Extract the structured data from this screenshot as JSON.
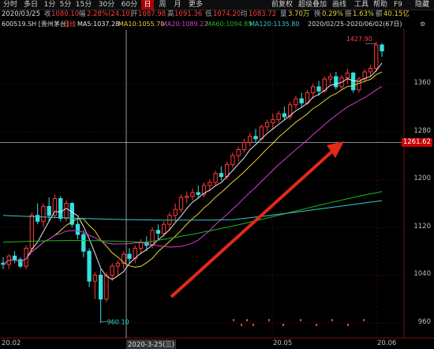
{
  "toolbar": {
    "periods": [
      "分时",
      "多日",
      "1分",
      "5分",
      "15分",
      "30分",
      "60分",
      "日",
      "周",
      "月",
      "更多"
    ],
    "active_period": "日",
    "right_tabs": [
      "前复权",
      "超级叠加",
      "画线",
      "工具",
      "帮助",
      "F9",
      "隐藏"
    ]
  },
  "info": {
    "date": "2020/03/25",
    "close_label": "收",
    "close": "1080.10",
    "change_label": "幅",
    "change": "2.28%(24.10)",
    "open_label": "开",
    "open": "1087.98",
    "high_label": "高",
    "high": "1091.36",
    "low_label": "低",
    "low": "1074.20",
    "prev_label": "均",
    "prev": "1083.72",
    "vol_label": "量",
    "vol": "3.70万",
    "turnover_label": "换",
    "turnover": "0.29%",
    "amp_label": "振",
    "amp": "1.63%",
    "amount_label": "额",
    "amount": "40.15亿"
  },
  "ma_bar": {
    "stock": "600519.SH [贵州茅台]",
    "period_tag": "日线",
    "ma5": "MA5:1037.28",
    "ma10": "MA10:1055.70",
    "ma20": "MA20:1089.22",
    "ma60": "MA60:1094.85",
    "ma120": "MA120:1135.80",
    "range": "2020/02/25-2020/06/02(67日)"
  },
  "price_axis": {
    "labels": [
      "1360",
      "1280",
      "1200",
      "1120",
      "1040",
      "960"
    ],
    "current_price": "1261.62"
  },
  "annotations": {
    "high": "1427.90",
    "low": "960.10"
  },
  "date_axis": {
    "labels": [
      "20.02",
      "2020-3-25(三)",
      "20.05",
      "20.06"
    ]
  },
  "chart_data": {
    "type": "candlestick",
    "y_unit": "CNY",
    "ylim": [
      935,
      1450
    ],
    "dates": [
      "2020-02-25",
      "2020-06-02"
    ],
    "candles": [
      [
        1060,
        1070,
        1050,
        1058
      ],
      [
        1058,
        1075,
        1050,
        1072
      ],
      [
        1072,
        1080,
        1060,
        1066
      ],
      [
        1066,
        1070,
        1052,
        1055
      ],
      [
        1055,
        1090,
        1050,
        1085
      ],
      [
        1085,
        1145,
        1080,
        1140
      ],
      [
        1140,
        1160,
        1125,
        1130
      ],
      [
        1130,
        1160,
        1120,
        1155
      ],
      [
        1155,
        1170,
        1130,
        1140
      ],
      [
        1140,
        1175,
        1135,
        1168
      ],
      [
        1168,
        1172,
        1130,
        1135
      ],
      [
        1135,
        1165,
        1130,
        1160
      ],
      [
        1160,
        1162,
        1120,
        1125
      ],
      [
        1125,
        1135,
        1100,
        1108
      ],
      [
        1108,
        1115,
        1070,
        1080
      ],
      [
        1080,
        1085,
        1020,
        1030
      ],
      [
        1030,
        1045,
        1000,
        1040
      ],
      [
        1040,
        1050,
        960,
        1000
      ],
      [
        1000,
        1045,
        995,
        1040
      ],
      [
        1040,
        1060,
        1030,
        1055
      ],
      [
        1055,
        1065,
        1040,
        1060
      ],
      [
        1060,
        1080,
        1050,
        1075
      ],
      [
        1075,
        1085,
        1060,
        1068
      ],
      [
        1068,
        1090,
        1060,
        1085
      ],
      [
        1085,
        1100,
        1075,
        1095
      ],
      [
        1095,
        1105,
        1080,
        1090
      ],
      [
        1090,
        1120,
        1085,
        1115
      ],
      [
        1115,
        1125,
        1100,
        1110
      ],
      [
        1110,
        1130,
        1105,
        1125
      ],
      [
        1125,
        1145,
        1115,
        1140
      ],
      [
        1140,
        1160,
        1130,
        1150
      ],
      [
        1150,
        1175,
        1145,
        1170
      ],
      [
        1170,
        1180,
        1160,
        1172
      ],
      [
        1172,
        1185,
        1165,
        1178
      ],
      [
        1178,
        1190,
        1170,
        1175
      ],
      [
        1175,
        1195,
        1170,
        1190
      ],
      [
        1190,
        1200,
        1180,
        1195
      ],
      [
        1195,
        1215,
        1190,
        1210
      ],
      [
        1210,
        1222,
        1198,
        1205
      ],
      [
        1205,
        1230,
        1200,
        1225
      ],
      [
        1225,
        1245,
        1220,
        1240
      ],
      [
        1240,
        1255,
        1230,
        1250
      ],
      [
        1250,
        1268,
        1245,
        1262
      ],
      [
        1262,
        1278,
        1255,
        1272
      ],
      [
        1272,
        1285,
        1262,
        1268
      ],
      [
        1268,
        1292,
        1265,
        1288
      ],
      [
        1288,
        1300,
        1280,
        1295
      ],
      [
        1295,
        1310,
        1285,
        1300
      ],
      [
        1300,
        1315,
        1295,
        1310
      ],
      [
        1310,
        1322,
        1300,
        1305
      ],
      [
        1305,
        1330,
        1300,
        1325
      ],
      [
        1325,
        1340,
        1318,
        1335
      ],
      [
        1335,
        1345,
        1320,
        1328
      ],
      [
        1328,
        1350,
        1325,
        1345
      ],
      [
        1345,
        1360,
        1335,
        1355
      ],
      [
        1355,
        1365,
        1340,
        1348
      ],
      [
        1348,
        1372,
        1345,
        1368
      ],
      [
        1368,
        1378,
        1360,
        1372
      ],
      [
        1372,
        1380,
        1350,
        1355
      ],
      [
        1355,
        1375,
        1350,
        1370
      ],
      [
        1370,
        1385,
        1360,
        1378
      ],
      [
        1378,
        1380,
        1345,
        1350
      ],
      [
        1350,
        1372,
        1345,
        1368
      ],
      [
        1368,
        1385,
        1362,
        1380
      ],
      [
        1380,
        1392,
        1372,
        1386
      ],
      [
        1386,
        1430,
        1380,
        1425
      ],
      [
        1425,
        1428,
        1405,
        1415
      ]
    ]
  },
  "colors": {
    "up": "#ff3a3a",
    "down": "#33e0e0",
    "ma5": "#e8e8e8",
    "ma10": "#e8d23a",
    "ma20": "#d040d0",
    "ma60": "#22b522",
    "ma120": "#38c8c8",
    "arrow": "#e02a1a"
  }
}
